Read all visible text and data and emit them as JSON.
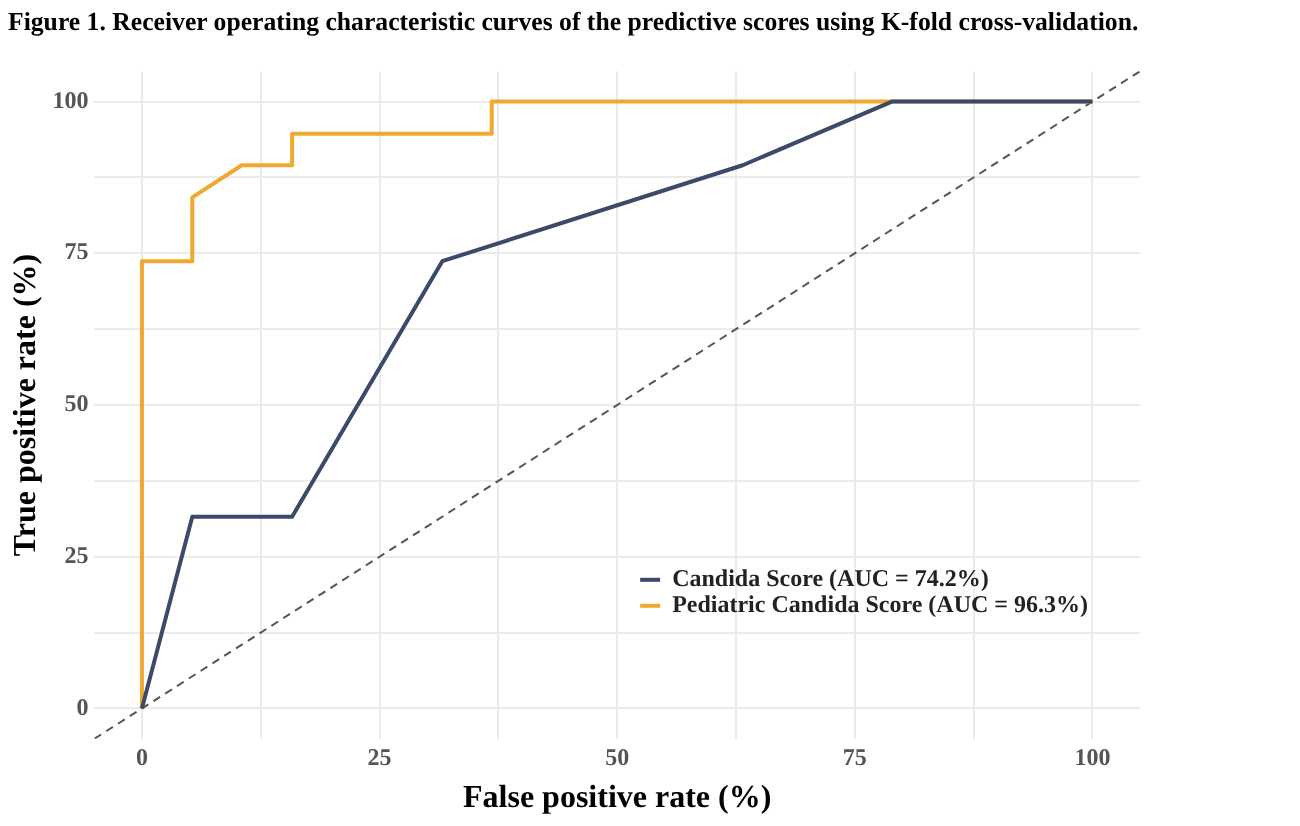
{
  "chart_data": {
    "type": "line",
    "title": "Figure 1. Receiver operating characteristic curves of the predictive scores using K-fold cross-validation.",
    "xlabel": "False positive rate (%)",
    "ylabel": "True positive rate (%)",
    "xlim": [
      -5,
      105
    ],
    "ylim": [
      -5,
      105
    ],
    "xticks": [
      0,
      {
        "value": 12.5,
        "label": null
      },
      25,
      {
        "value": 37.5,
        "label": null
      },
      50,
      {
        "value": 62.5,
        "label": null
      },
      75,
      {
        "value": 87.5,
        "label": null
      },
      100
    ],
    "yticks": [
      0,
      {
        "value": 12.5,
        "label": null
      },
      25,
      {
        "value": 37.5,
        "label": null
      },
      50,
      {
        "value": 62.5,
        "label": null
      },
      75,
      {
        "value": 87.5,
        "label": null
      },
      100
    ],
    "grid": true,
    "legend": "bottom right",
    "marker": "none",
    "series": [
      {
        "name": "Candida Score (AUC = 74.2%)",
        "color": "#3b4a6b",
        "x": [
          0,
          5.3,
          15.8,
          31.6,
          63.2,
          78.9,
          100
        ],
        "values": [
          0,
          31.6,
          31.6,
          73.7,
          89.5,
          100,
          100
        ]
      },
      {
        "name": "Pediatric Candida Score (AUC = 96.3%)",
        "color": "#f0a830",
        "x": [
          0,
          0,
          5.3,
          5.3,
          10.5,
          15.8,
          15.8,
          36.8,
          36.8,
          100
        ],
        "values": [
          0,
          73.7,
          73.7,
          84.2,
          89.5,
          89.5,
          94.7,
          94.7,
          100,
          100
        ]
      },
      {
        "color": "#555555",
        "line_style": "dashed",
        "x": [
          -5,
          105
        ],
        "values": [
          -5,
          105
        ]
      }
    ]
  }
}
